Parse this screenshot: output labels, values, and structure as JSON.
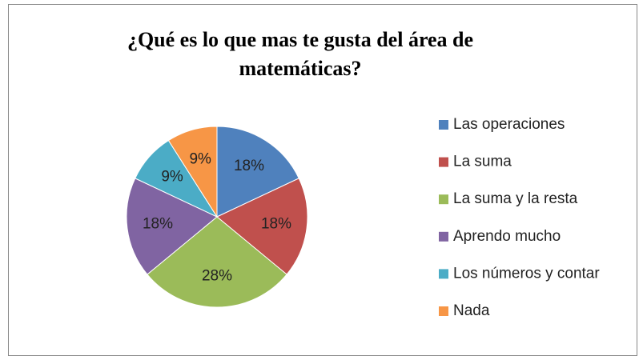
{
  "chart_data": {
    "type": "pie",
    "title": "¿Qué es lo que mas te gusta del área de matemáticas?",
    "categories": [
      "Las operaciones",
      "La suma",
      "La suma y la resta",
      "Aprendo mucho",
      "Los números y contar",
      "Nada"
    ],
    "values": [
      18,
      18,
      28,
      18,
      9,
      9
    ],
    "value_labels": [
      "18%",
      "18%",
      "28%",
      "18%",
      "9%",
      "9%"
    ],
    "colors": [
      "#4f81bd",
      "#c0504d",
      "#9bbb59",
      "#8064a2",
      "#4bacc6",
      "#f79646"
    ],
    "legend": "right"
  }
}
